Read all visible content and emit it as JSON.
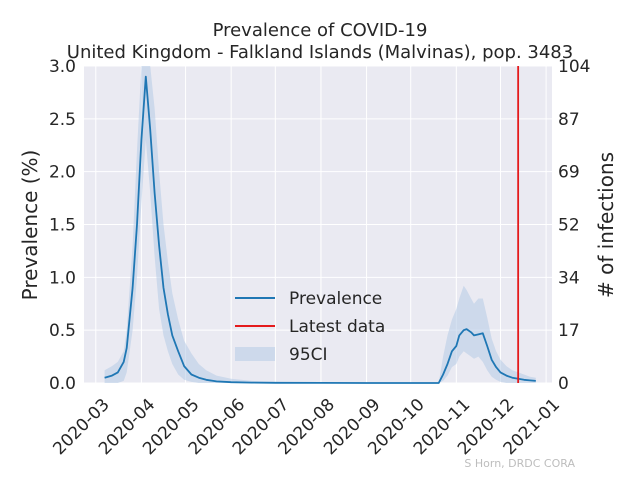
{
  "chart_data": {
    "type": "line",
    "title": "Prevalence of COVID-19",
    "subtitle": "United Kingdom - Falkland Islands (Malvinas), pop. 3483",
    "ylabel": "Prevalence (%)",
    "y2label": "# of infections",
    "credit": "S Horn, DRDC CORA",
    "ylim": [
      0,
      3.0
    ],
    "y2lim": [
      0,
      104
    ],
    "xlim": [
      "2020-02-22",
      "2021-01-05"
    ],
    "yticks": [
      "0.0",
      "0.5",
      "1.0",
      "1.5",
      "2.0",
      "2.5",
      "3.0"
    ],
    "y2ticks": [
      "0",
      "17",
      "34",
      "52",
      "69",
      "87",
      "104"
    ],
    "xticks": [
      {
        "date": "2020-03-01",
        "label": "2020-03"
      },
      {
        "date": "2020-04-01",
        "label": "2020-04"
      },
      {
        "date": "2020-05-01",
        "label": "2020-05"
      },
      {
        "date": "2020-06-01",
        "label": "2020-06"
      },
      {
        "date": "2020-07-01",
        "label": "2020-07"
      },
      {
        "date": "2020-08-01",
        "label": "2020-08"
      },
      {
        "date": "2020-09-01",
        "label": "2020-09"
      },
      {
        "date": "2020-10-01",
        "label": "2020-10"
      },
      {
        "date": "2020-11-01",
        "label": "2020-11"
      },
      {
        "date": "2020-12-01",
        "label": "2020-12"
      },
      {
        "date": "2021-01-01",
        "label": "2021-01"
      }
    ],
    "grid": true,
    "legend": {
      "placement": "lower-center",
      "entries": [
        "Prevalence",
        "Latest data",
        "95CI"
      ]
    },
    "colors": {
      "prevalence": "#1f77b4",
      "latest": "#e41a1c",
      "ci": "#b5cbe6",
      "background": "#eaeaf2",
      "grid": "#ffffff"
    },
    "latest_data_date": "2020-12-13",
    "series": [
      {
        "name": "Prevalence",
        "points": [
          [
            "2020-03-07",
            0.05
          ],
          [
            "2020-03-12",
            0.07
          ],
          [
            "2020-03-16",
            0.1
          ],
          [
            "2020-03-20",
            0.2
          ],
          [
            "2020-03-22",
            0.33
          ],
          [
            "2020-03-26",
            0.9
          ],
          [
            "2020-03-29",
            1.5
          ],
          [
            "2020-04-01",
            2.3
          ],
          [
            "2020-04-04",
            2.9
          ],
          [
            "2020-04-07",
            2.4
          ],
          [
            "2020-04-10",
            1.8
          ],
          [
            "2020-04-13",
            1.3
          ],
          [
            "2020-04-16",
            0.9
          ],
          [
            "2020-04-19",
            0.65
          ],
          [
            "2020-04-22",
            0.45
          ],
          [
            "2020-04-26",
            0.3
          ],
          [
            "2020-04-30",
            0.16
          ],
          [
            "2020-05-05",
            0.08
          ],
          [
            "2020-05-10",
            0.05
          ],
          [
            "2020-05-15",
            0.03
          ],
          [
            "2020-05-22",
            0.015
          ],
          [
            "2020-06-01",
            0.008
          ],
          [
            "2020-06-15",
            0.004
          ],
          [
            "2020-07-01",
            0.002
          ],
          [
            "2020-08-01",
            0.001
          ],
          [
            "2020-09-01",
            0.0
          ],
          [
            "2020-10-01",
            0.0
          ],
          [
            "2020-10-20",
            0.0
          ],
          [
            "2020-10-23",
            0.08
          ],
          [
            "2020-10-26",
            0.18
          ],
          [
            "2020-10-29",
            0.3
          ],
          [
            "2020-11-01",
            0.35
          ],
          [
            "2020-11-03",
            0.45
          ],
          [
            "2020-11-06",
            0.5
          ],
          [
            "2020-11-08",
            0.51
          ],
          [
            "2020-11-11",
            0.48
          ],
          [
            "2020-11-13",
            0.45
          ],
          [
            "2020-11-16",
            0.46
          ],
          [
            "2020-11-19",
            0.47
          ],
          [
            "2020-11-22",
            0.35
          ],
          [
            "2020-11-25",
            0.22
          ],
          [
            "2020-11-28",
            0.15
          ],
          [
            "2020-12-01",
            0.1
          ],
          [
            "2020-12-05",
            0.07
          ],
          [
            "2020-12-09",
            0.05
          ],
          [
            "2020-12-13",
            0.04
          ],
          [
            "2020-12-17",
            0.03
          ],
          [
            "2020-12-21",
            0.025
          ],
          [
            "2020-12-25",
            0.02
          ]
        ]
      },
      {
        "name": "95CI",
        "points": [
          [
            "2020-03-07",
            0.0,
            0.12
          ],
          [
            "2020-03-12",
            0.0,
            0.16
          ],
          [
            "2020-03-16",
            0.0,
            0.2
          ],
          [
            "2020-03-20",
            0.02,
            0.3
          ],
          [
            "2020-03-22",
            0.1,
            0.5
          ],
          [
            "2020-03-26",
            0.5,
            1.3
          ],
          [
            "2020-03-29",
            1.0,
            2.2
          ],
          [
            "2020-04-01",
            1.7,
            3.0
          ],
          [
            "2020-04-04",
            2.3,
            3.0
          ],
          [
            "2020-04-07",
            1.8,
            3.0
          ],
          [
            "2020-04-10",
            1.2,
            2.6
          ],
          [
            "2020-04-13",
            0.7,
            2.0
          ],
          [
            "2020-04-16",
            0.45,
            1.5
          ],
          [
            "2020-04-19",
            0.3,
            1.15
          ],
          [
            "2020-04-22",
            0.18,
            0.85
          ],
          [
            "2020-04-26",
            0.08,
            0.6
          ],
          [
            "2020-04-30",
            0.03,
            0.4
          ],
          [
            "2020-05-05",
            0.01,
            0.28
          ],
          [
            "2020-05-10",
            0.0,
            0.18
          ],
          [
            "2020-05-15",
            0.0,
            0.12
          ],
          [
            "2020-05-22",
            0.0,
            0.07
          ],
          [
            "2020-06-01",
            0.0,
            0.04
          ],
          [
            "2020-06-15",
            0.0,
            0.02
          ],
          [
            "2020-07-01",
            0.0,
            0.01
          ],
          [
            "2020-08-01",
            0.0,
            0.0
          ],
          [
            "2020-09-01",
            0.0,
            0.0
          ],
          [
            "2020-10-01",
            0.0,
            0.0
          ],
          [
            "2020-10-20",
            0.0,
            0.0
          ],
          [
            "2020-10-23",
            0.02,
            0.25
          ],
          [
            "2020-10-26",
            0.07,
            0.45
          ],
          [
            "2020-10-29",
            0.15,
            0.6
          ],
          [
            "2020-11-01",
            0.18,
            0.7
          ],
          [
            "2020-11-03",
            0.25,
            0.8
          ],
          [
            "2020-11-06",
            0.3,
            0.92
          ],
          [
            "2020-11-08",
            0.28,
            0.88
          ],
          [
            "2020-11-11",
            0.25,
            0.8
          ],
          [
            "2020-11-13",
            0.23,
            0.75
          ],
          [
            "2020-11-16",
            0.25,
            0.8
          ],
          [
            "2020-11-19",
            0.2,
            0.8
          ],
          [
            "2020-11-22",
            0.12,
            0.62
          ],
          [
            "2020-11-25",
            0.06,
            0.42
          ],
          [
            "2020-11-28",
            0.03,
            0.3
          ],
          [
            "2020-12-01",
            0.01,
            0.22
          ],
          [
            "2020-12-05",
            0.0,
            0.16
          ],
          [
            "2020-12-09",
            0.0,
            0.12
          ],
          [
            "2020-12-13",
            0.0,
            0.1
          ],
          [
            "2020-12-17",
            0.0,
            0.08
          ],
          [
            "2020-12-21",
            0.0,
            0.06
          ],
          [
            "2020-12-25",
            0.0,
            0.05
          ]
        ]
      }
    ]
  }
}
